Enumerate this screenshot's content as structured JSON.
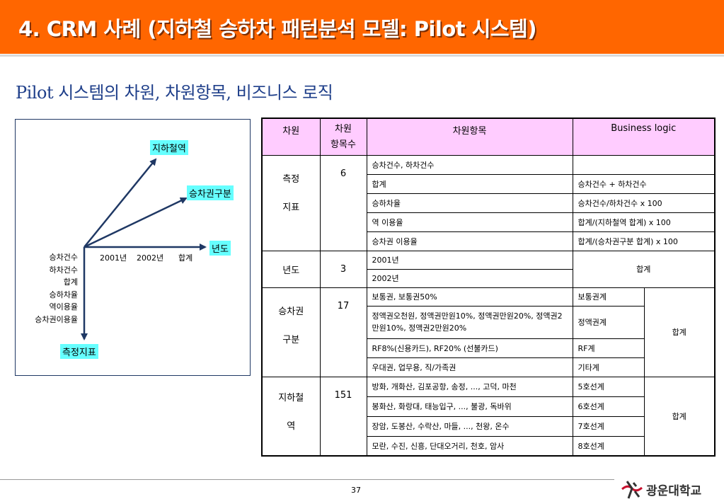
{
  "header": {
    "title": "4. CRM 사례 (지하철 승하차 패턴분석 모델: Pilot 시스템)"
  },
  "subtitle": "Pilot 시스템의 차원, 차원항목, 비즈니스 로직",
  "diagram": {
    "axis_subway": "지하철역",
    "axis_ticket": "승차권구분",
    "axis_year": "년도",
    "axis_metric": "측정지표",
    "year_labels": [
      "2001년",
      "2002년",
      "합계"
    ],
    "metric_labels": [
      "승차건수",
      "하차건수",
      "합계",
      "승하차율",
      "역이용율",
      "승차권이용율"
    ],
    "colors": {
      "box_fill": "#66ffff",
      "arrow": "#1f3864"
    }
  },
  "table": {
    "headers": {
      "dimension": "차원",
      "count": "차원\n항목수",
      "items": "차원항목",
      "logic": "Business logic"
    },
    "groups": [
      {
        "dimension": "측정\n지표",
        "count": "6",
        "rows": [
          {
            "item": "승차건수, 하차건수",
            "logic": ""
          },
          {
            "item": "합계",
            "logic": "승차건수 + 하차건수"
          },
          {
            "item": "승하차율",
            "logic": "승차건수/하차건수 x 100"
          },
          {
            "item": "역 이용율",
            "logic": "합계/(지하철역 합계) x 100"
          },
          {
            "item": "승차권 이용율",
            "logic": "합계/(승차권구분 합계) x 100"
          }
        ]
      },
      {
        "dimension": "년도",
        "count": "3",
        "rows": [
          {
            "item": "2001년"
          },
          {
            "item": "2002년"
          }
        ],
        "logic": "합계"
      },
      {
        "dimension": "승차권\n구분",
        "count": "17",
        "rows": [
          {
            "item": "보통권, 보통권50%",
            "logic": "보통권계"
          },
          {
            "item": "정액권오천원, 정액권만원10%, 정액권만원20%, 정액권2만원10%, 정액권2만원20%",
            "logic": "정액권계"
          },
          {
            "item": "RF8%(신용카드), RF20% (선불카드)",
            "logic": "RF계"
          },
          {
            "item": "우대권, 업무용, 직/가족권",
            "logic": "기타계"
          }
        ],
        "total": "합계"
      },
      {
        "dimension": "지하철\n역",
        "count": "151",
        "rows": [
          {
            "item": "방화, 개화산, 김포공항, 송정, ..., 고덕, 마천",
            "logic": "5호선계"
          },
          {
            "item": "봉화산, 화랑대, 태능입구, ..., 불광, 독바위",
            "logic": "6호선계"
          },
          {
            "item": "장암, 도봉산, 수락산, 마들, ..., 천왕, 온수",
            "logic": "7호선계"
          },
          {
            "item": "모란, 수진, 신흥, 단대오거리, 천호, 암사",
            "logic": "8호선계"
          }
        ],
        "total": "합계"
      }
    ]
  },
  "footer": {
    "page": "37",
    "logo_text": "광운대학교"
  }
}
